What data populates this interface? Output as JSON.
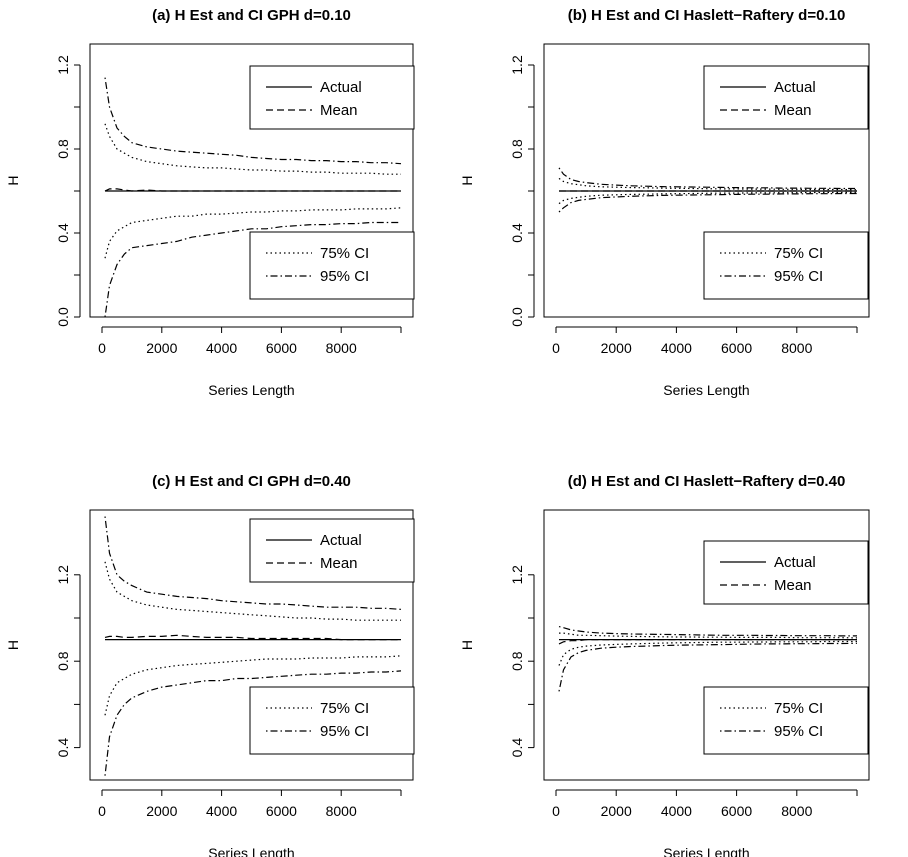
{
  "chart_data": [
    {
      "type": "line",
      "title": "(a) H Est and CI GPH d=0.10",
      "xlabel": "Series Length",
      "ylabel": "H",
      "xlim": [
        0,
        10000
      ],
      "ylim": [
        0.0,
        1.3
      ],
      "xticks": [
        "0",
        "2000",
        "4000",
        "6000",
        "8000"
      ],
      "yticks": [
        "0.0",
        "0.4",
        "0.8",
        "1.2"
      ],
      "legend_top": [
        "Actual",
        "Mean"
      ],
      "legend_bottom": [
        "75% CI",
        "95% CI"
      ],
      "x": [
        100,
        250,
        500,
        750,
        1000,
        1500,
        2000,
        2500,
        3000,
        3500,
        4000,
        4500,
        5000,
        5500,
        6000,
        6500,
        7000,
        7500,
        8000,
        8500,
        9000,
        9500,
        10000
      ],
      "series": [
        {
          "name": "Actual",
          "style": "solid",
          "values": [
            0.6,
            0.6,
            0.6,
            0.6,
            0.6,
            0.6,
            0.6,
            0.6,
            0.6,
            0.6,
            0.6,
            0.6,
            0.6,
            0.6,
            0.6,
            0.6,
            0.6,
            0.6,
            0.6,
            0.6,
            0.6,
            0.6,
            0.6
          ]
        },
        {
          "name": "Mean",
          "style": "dashed",
          "values": [
            0.6,
            0.61,
            0.61,
            0.605,
            0.6,
            0.605,
            0.6,
            0.6,
            0.6,
            0.6,
            0.6,
            0.6,
            0.6,
            0.6,
            0.6,
            0.6,
            0.6,
            0.6,
            0.6,
            0.6,
            0.6,
            0.6,
            0.6
          ]
        },
        {
          "name": "75% CI upper",
          "style": "dotted",
          "values": [
            0.92,
            0.86,
            0.8,
            0.78,
            0.76,
            0.74,
            0.73,
            0.72,
            0.715,
            0.71,
            0.71,
            0.705,
            0.7,
            0.7,
            0.695,
            0.695,
            0.69,
            0.69,
            0.685,
            0.685,
            0.685,
            0.68,
            0.68
          ]
        },
        {
          "name": "75% CI lower",
          "style": "dotted",
          "values": [
            0.28,
            0.36,
            0.41,
            0.43,
            0.45,
            0.46,
            0.47,
            0.48,
            0.48,
            0.49,
            0.49,
            0.495,
            0.5,
            0.5,
            0.505,
            0.505,
            0.51,
            0.51,
            0.51,
            0.515,
            0.515,
            0.515,
            0.52
          ]
        },
        {
          "name": "95% CI upper",
          "style": "dotdash",
          "values": [
            1.14,
            1.0,
            0.9,
            0.86,
            0.83,
            0.81,
            0.8,
            0.79,
            0.785,
            0.78,
            0.775,
            0.77,
            0.76,
            0.755,
            0.75,
            0.75,
            0.745,
            0.745,
            0.74,
            0.74,
            0.735,
            0.735,
            0.73
          ]
        },
        {
          "name": "95% CI lower",
          "style": "dotdash",
          "values": [
            0.0,
            0.15,
            0.25,
            0.3,
            0.33,
            0.34,
            0.35,
            0.36,
            0.38,
            0.39,
            0.4,
            0.41,
            0.42,
            0.42,
            0.43,
            0.435,
            0.44,
            0.44,
            0.445,
            0.445,
            0.45,
            0.45,
            0.45
          ]
        }
      ]
    },
    {
      "type": "line",
      "title": "(b) H Est and CI Haslett−Raftery d=0.10",
      "xlabel": "Series Length",
      "ylabel": "H",
      "xlim": [
        0,
        10000
      ],
      "ylim": [
        0.0,
        1.3
      ],
      "xticks": [
        "0",
        "2000",
        "4000",
        "6000",
        "8000"
      ],
      "yticks": [
        "0.0",
        "0.4",
        "0.8",
        "1.2"
      ],
      "legend_top": [
        "Actual",
        "Mean"
      ],
      "legend_bottom": [
        "75% CI",
        "95% CI"
      ],
      "x": [
        100,
        250,
        500,
        750,
        1000,
        1500,
        2000,
        2500,
        3000,
        3500,
        4000,
        4500,
        5000,
        5500,
        6000,
        6500,
        7000,
        7500,
        8000,
        8500,
        9000,
        9500,
        10000
      ],
      "series": [
        {
          "name": "Actual",
          "style": "solid",
          "values": [
            0.6,
            0.6,
            0.6,
            0.6,
            0.6,
            0.6,
            0.6,
            0.6,
            0.6,
            0.6,
            0.6,
            0.6,
            0.6,
            0.6,
            0.6,
            0.6,
            0.6,
            0.6,
            0.6,
            0.6,
            0.6,
            0.6,
            0.6
          ]
        },
        {
          "name": "Mean",
          "style": "dashed",
          "values": [
            0.6,
            0.6,
            0.6,
            0.6,
            0.6,
            0.6,
            0.6,
            0.6,
            0.6,
            0.6,
            0.6,
            0.6,
            0.6,
            0.6,
            0.6,
            0.6,
            0.6,
            0.6,
            0.6,
            0.6,
            0.6,
            0.6,
            0.6
          ]
        },
        {
          "name": "75% CI upper",
          "style": "dotted",
          "values": [
            0.66,
            0.645,
            0.635,
            0.63,
            0.625,
            0.62,
            0.618,
            0.616,
            0.615,
            0.614,
            0.613,
            0.612,
            0.611,
            0.61,
            0.61,
            0.609,
            0.609,
            0.608,
            0.608,
            0.607,
            0.607,
            0.607,
            0.606
          ]
        },
        {
          "name": "75% CI lower",
          "style": "dotted",
          "values": [
            0.54,
            0.555,
            0.565,
            0.57,
            0.575,
            0.58,
            0.582,
            0.584,
            0.585,
            0.586,
            0.587,
            0.588,
            0.589,
            0.59,
            0.59,
            0.591,
            0.591,
            0.592,
            0.592,
            0.593,
            0.593,
            0.593,
            0.594
          ]
        },
        {
          "name": "95% CI upper",
          "style": "dotdash",
          "values": [
            0.71,
            0.68,
            0.655,
            0.645,
            0.64,
            0.632,
            0.628,
            0.625,
            0.623,
            0.621,
            0.62,
            0.619,
            0.618,
            0.617,
            0.616,
            0.615,
            0.615,
            0.614,
            0.614,
            0.613,
            0.613,
            0.612,
            0.612
          ]
        },
        {
          "name": "95% CI lower",
          "style": "dotdash",
          "values": [
            0.5,
            0.52,
            0.545,
            0.555,
            0.56,
            0.568,
            0.572,
            0.575,
            0.577,
            0.579,
            0.58,
            0.581,
            0.582,
            0.583,
            0.584,
            0.585,
            0.585,
            0.586,
            0.586,
            0.587,
            0.587,
            0.588,
            0.588
          ]
        }
      ]
    },
    {
      "type": "line",
      "title": "(c) H Est and CI GPH d=0.40",
      "xlabel": "Series Length",
      "ylabel": "H",
      "xlim": [
        0,
        10000
      ],
      "ylim": [
        0.25,
        1.5
      ],
      "xticks": [
        "0",
        "2000",
        "4000",
        "6000",
        "8000"
      ],
      "yticks": [
        "0.4",
        "0.8",
        "1.2"
      ],
      "legend_top": [
        "Actual",
        "Mean"
      ],
      "legend_bottom": [
        "75% CI",
        "95% CI"
      ],
      "x": [
        100,
        250,
        500,
        750,
        1000,
        1500,
        2000,
        2500,
        3000,
        3500,
        4000,
        4500,
        5000,
        5500,
        6000,
        6500,
        7000,
        7500,
        8000,
        8500,
        9000,
        9500,
        10000
      ],
      "series": [
        {
          "name": "Actual",
          "style": "solid",
          "values": [
            0.9,
            0.9,
            0.9,
            0.9,
            0.9,
            0.9,
            0.9,
            0.9,
            0.9,
            0.9,
            0.9,
            0.9,
            0.9,
            0.9,
            0.9,
            0.9,
            0.9,
            0.9,
            0.9,
            0.9,
            0.9,
            0.9,
            0.9
          ]
        },
        {
          "name": "Mean",
          "style": "dashed",
          "values": [
            0.91,
            0.915,
            0.915,
            0.91,
            0.91,
            0.915,
            0.915,
            0.92,
            0.915,
            0.91,
            0.91,
            0.91,
            0.905,
            0.905,
            0.905,
            0.905,
            0.905,
            0.905,
            0.9,
            0.9,
            0.9,
            0.9,
            0.9
          ]
        },
        {
          "name": "75% CI upper",
          "style": "dotted",
          "values": [
            1.26,
            1.18,
            1.12,
            1.1,
            1.08,
            1.06,
            1.05,
            1.04,
            1.035,
            1.03,
            1.025,
            1.02,
            1.015,
            1.01,
            1.005,
            1.0,
            1.0,
            0.995,
            0.995,
            0.99,
            0.99,
            0.99,
            0.99
          ]
        },
        {
          "name": "75% CI lower",
          "style": "dotted",
          "values": [
            0.55,
            0.64,
            0.7,
            0.72,
            0.74,
            0.76,
            0.77,
            0.78,
            0.785,
            0.79,
            0.795,
            0.8,
            0.805,
            0.81,
            0.81,
            0.81,
            0.815,
            0.815,
            0.815,
            0.82,
            0.82,
            0.82,
            0.825
          ]
        },
        {
          "name": "95% CI upper",
          "style": "dotdash",
          "values": [
            1.47,
            1.3,
            1.2,
            1.17,
            1.15,
            1.12,
            1.11,
            1.1,
            1.095,
            1.09,
            1.08,
            1.075,
            1.07,
            1.065,
            1.065,
            1.06,
            1.055,
            1.05,
            1.05,
            1.05,
            1.045,
            1.045,
            1.04
          ]
        },
        {
          "name": "95% CI lower",
          "style": "dotdash",
          "values": [
            0.27,
            0.45,
            0.55,
            0.6,
            0.63,
            0.66,
            0.68,
            0.69,
            0.7,
            0.71,
            0.71,
            0.72,
            0.72,
            0.725,
            0.73,
            0.735,
            0.74,
            0.74,
            0.745,
            0.745,
            0.75,
            0.75,
            0.755
          ]
        }
      ]
    },
    {
      "type": "line",
      "title": "(d) H Est and CI Haslett−Raftery d=0.40",
      "xlabel": "Series Length",
      "ylabel": "H",
      "xlim": [
        0,
        10000
      ],
      "ylim": [
        0.25,
        1.5
      ],
      "xticks": [
        "0",
        "2000",
        "4000",
        "6000",
        "8000"
      ],
      "yticks": [
        "0.4",
        "0.8",
        "1.2"
      ],
      "legend_top": [
        "Actual",
        "Mean"
      ],
      "legend_bottom": [
        "75% CI",
        "95% CI"
      ],
      "x": [
        100,
        250,
        500,
        750,
        1000,
        1500,
        2000,
        2500,
        3000,
        3500,
        4000,
        4500,
        5000,
        5500,
        6000,
        6500,
        7000,
        7500,
        8000,
        8500,
        9000,
        9500,
        10000
      ],
      "series": [
        {
          "name": "Actual",
          "style": "solid",
          "values": [
            0.9,
            0.9,
            0.9,
            0.9,
            0.9,
            0.9,
            0.9,
            0.9,
            0.9,
            0.9,
            0.9,
            0.9,
            0.9,
            0.9,
            0.9,
            0.9,
            0.9,
            0.9,
            0.9,
            0.9,
            0.9,
            0.9,
            0.9
          ]
        },
        {
          "name": "Mean",
          "style": "dashed",
          "values": [
            0.88,
            0.89,
            0.895,
            0.895,
            0.9,
            0.9,
            0.9,
            0.9,
            0.9,
            0.9,
            0.9,
            0.9,
            0.9,
            0.9,
            0.9,
            0.9,
            0.9,
            0.9,
            0.9,
            0.9,
            0.9,
            0.9,
            0.9
          ]
        },
        {
          "name": "75% CI upper",
          "style": "dotted",
          "values": [
            0.93,
            0.93,
            0.925,
            0.92,
            0.92,
            0.918,
            0.916,
            0.915,
            0.914,
            0.913,
            0.912,
            0.912,
            0.911,
            0.911,
            0.91,
            0.91,
            0.91,
            0.91,
            0.909,
            0.909,
            0.909,
            0.909,
            0.908
          ]
        },
        {
          "name": "75% CI lower",
          "style": "dotted",
          "values": [
            0.78,
            0.83,
            0.855,
            0.865,
            0.87,
            0.875,
            0.878,
            0.88,
            0.882,
            0.884,
            0.885,
            0.886,
            0.887,
            0.888,
            0.888,
            0.889,
            0.889,
            0.89,
            0.89,
            0.89,
            0.891,
            0.891,
            0.891
          ]
        },
        {
          "name": "95% CI upper",
          "style": "dotdash",
          "values": [
            0.96,
            0.955,
            0.945,
            0.94,
            0.935,
            0.93,
            0.928,
            0.926,
            0.925,
            0.924,
            0.923,
            0.922,
            0.921,
            0.92,
            0.92,
            0.92,
            0.919,
            0.919,
            0.918,
            0.918,
            0.918,
            0.917,
            0.917
          ]
        },
        {
          "name": "95% CI lower",
          "style": "dotdash",
          "values": [
            0.66,
            0.76,
            0.82,
            0.84,
            0.85,
            0.86,
            0.865,
            0.868,
            0.87,
            0.872,
            0.874,
            0.875,
            0.876,
            0.877,
            0.878,
            0.879,
            0.88,
            0.88,
            0.881,
            0.881,
            0.882,
            0.882,
            0.883
          ]
        }
      ]
    }
  ]
}
